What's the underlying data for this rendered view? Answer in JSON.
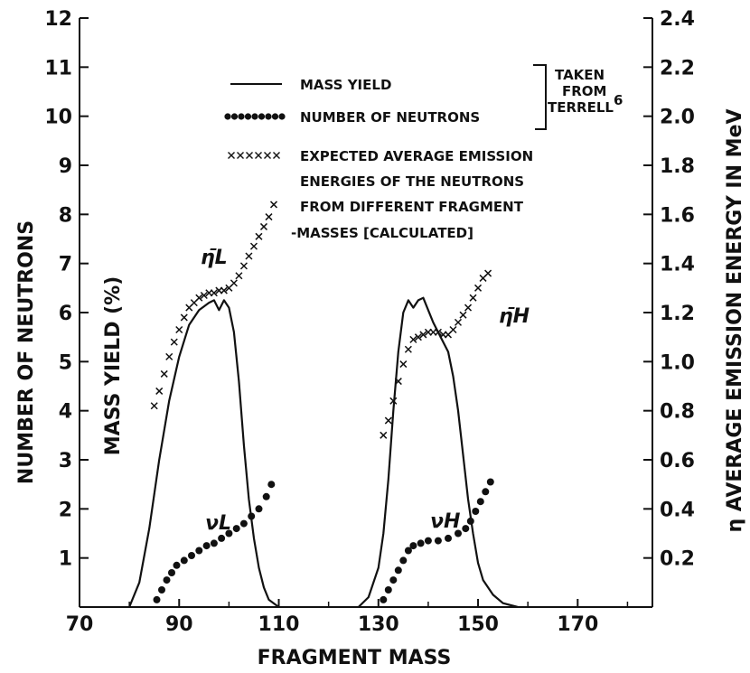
{
  "chart_data": {
    "type": "line",
    "title": "",
    "xlabel": "FRAGMENT MASS",
    "ylabel_outer": "NUMBER OF NEUTRONS",
    "ylabel_inner": "MASS YIELD (%)",
    "ylabel_right": "η AVERAGE EMISSION ENERGY IN MeV",
    "xlim": [
      70,
      185
    ],
    "ylim": [
      0,
      12
    ],
    "ylim_right": [
      0,
      2.4
    ],
    "x_ticks": [
      "70",
      "90",
      "110",
      "130",
      "150",
      "170"
    ],
    "x_tick_values": [
      70,
      90,
      110,
      130,
      150,
      170
    ],
    "y_ticks": [
      "1",
      "2",
      "3",
      "4",
      "5",
      "6",
      "7",
      "8",
      "9",
      "10",
      "11",
      "12"
    ],
    "y_tick_values": [
      1,
      2,
      3,
      4,
      5,
      6,
      7,
      8,
      9,
      10,
      11,
      12
    ],
    "y2_ticks": [
      "0.2",
      "0.4",
      "0.6",
      "0.8",
      "1.0",
      "1.2",
      "1.4",
      "1.6",
      "1.8",
      "2.0",
      "2.2",
      "2.4"
    ],
    "y2_tick_values": [
      0.2,
      0.4,
      0.6,
      0.8,
      1.0,
      1.2,
      1.4,
      1.6,
      1.8,
      2.0,
      2.2,
      2.4
    ],
    "grid": false,
    "legend_position": "top-center",
    "legend": {
      "mass_yield": "MASS YIELD",
      "neutrons": "NUMBER OF NEUTRONS",
      "bracket_label": [
        "TAKEN",
        "FROM",
        "TERRELL"
      ],
      "bracket_ref": "6",
      "energies": [
        "EXPECTED AVERAGE EMISSION",
        "ENERGIES OF THE NEUTRONS",
        "FROM DIFFERENT FRAGMENT",
        "-MASSES [CALCULATED]"
      ]
    },
    "curve_labels": {
      "eta_l": "η̄L",
      "eta_h": "η̄H",
      "nu_l": "νL",
      "nu_h": "νH"
    },
    "series": [
      {
        "name": "MASS YIELD",
        "style": "solid",
        "axis": "left",
        "segments": [
          [
            [
              80,
              0
            ],
            [
              82,
              0.5
            ],
            [
              84,
              1.6
            ],
            [
              86,
              3.0
            ],
            [
              88,
              4.2
            ],
            [
              90,
              5.1
            ],
            [
              92,
              5.75
            ],
            [
              94,
              6.05
            ],
            [
              96,
              6.2
            ],
            [
              97,
              6.25
            ],
            [
              98,
              6.05
            ],
            [
              99,
              6.25
            ],
            [
              100,
              6.1
            ],
            [
              101,
              5.6
            ],
            [
              102,
              4.6
            ],
            [
              103,
              3.3
            ],
            [
              104,
              2.2
            ],
            [
              105,
              1.4
            ],
            [
              106,
              0.8
            ],
            [
              107,
              0.4
            ],
            [
              108,
              0.15
            ],
            [
              110,
              0
            ]
          ],
          [
            [
              126,
              0
            ],
            [
              128,
              0.2
            ],
            [
              130,
              0.8
            ],
            [
              131,
              1.5
            ],
            [
              132,
              2.6
            ],
            [
              133,
              4.0
            ],
            [
              134,
              5.2
            ],
            [
              135,
              6.0
            ],
            [
              136,
              6.25
            ],
            [
              137,
              6.1
            ],
            [
              138,
              6.25
            ],
            [
              139,
              6.3
            ],
            [
              140,
              6.05
            ],
            [
              141,
              5.8
            ],
            [
              142,
              5.6
            ],
            [
              144,
              5.2
            ],
            [
              145,
              4.7
            ],
            [
              146,
              4.0
            ],
            [
              147,
              3.1
            ],
            [
              148,
              2.2
            ],
            [
              149,
              1.5
            ],
            [
              150,
              0.9
            ],
            [
              151,
              0.55
            ],
            [
              153,
              0.25
            ],
            [
              155,
              0.08
            ],
            [
              158,
              0
            ]
          ]
        ]
      },
      {
        "name": "NUMBER OF NEUTRONS",
        "style": "dots",
        "axis": "left",
        "segments": [
          [
            [
              85.5,
              0.15
            ],
            [
              86.5,
              0.35
            ],
            [
              87.5,
              0.55
            ],
            [
              88.5,
              0.7
            ],
            [
              89.5,
              0.85
            ],
            [
              91,
              0.95
            ],
            [
              92.5,
              1.05
            ],
            [
              94,
              1.15
            ],
            [
              95.5,
              1.25
            ],
            [
              97,
              1.3
            ],
            [
              98.5,
              1.4
            ],
            [
              100,
              1.5
            ],
            [
              101.5,
              1.6
            ],
            [
              103,
              1.7
            ],
            [
              104.5,
              1.85
            ],
            [
              106,
              2.0
            ],
            [
              107.5,
              2.25
            ],
            [
              108.5,
              2.5
            ]
          ],
          [
            [
              131,
              0.15
            ],
            [
              132,
              0.35
            ],
            [
              133,
              0.55
            ],
            [
              134,
              0.75
            ],
            [
              135,
              0.95
            ],
            [
              136,
              1.15
            ],
            [
              137,
              1.25
            ],
            [
              138.5,
              1.3
            ],
            [
              140,
              1.35
            ],
            [
              142,
              1.35
            ],
            [
              144,
              1.4
            ],
            [
              146,
              1.5
            ],
            [
              147.5,
              1.6
            ],
            [
              148.5,
              1.75
            ],
            [
              149.5,
              1.95
            ],
            [
              150.5,
              2.15
            ],
            [
              151.5,
              2.35
            ],
            [
              152.5,
              2.55
            ]
          ]
        ]
      },
      {
        "name": "EXPECTED AVERAGE EMISSION ENERGIES OF THE NEUTRONS FROM DIFFERENT FRAGMENT MASSES [CALCULATED]",
        "style": "crosses",
        "axis": "right",
        "segments": [
          [
            [
              85,
              0.82
            ],
            [
              86,
              0.88
            ],
            [
              87,
              0.95
            ],
            [
              88,
              1.02
            ],
            [
              89,
              1.08
            ],
            [
              90,
              1.13
            ],
            [
              91,
              1.18
            ],
            [
              92,
              1.22
            ],
            [
              93,
              1.24
            ],
            [
              94,
              1.26
            ],
            [
              95,
              1.27
            ],
            [
              96,
              1.28
            ],
            [
              97,
              1.28
            ],
            [
              98,
              1.29
            ],
            [
              99,
              1.29
            ],
            [
              100,
              1.3
            ],
            [
              101,
              1.32
            ],
            [
              102,
              1.35
            ],
            [
              103,
              1.39
            ],
            [
              104,
              1.43
            ],
            [
              105,
              1.47
            ],
            [
              106,
              1.51
            ],
            [
              107,
              1.55
            ],
            [
              108,
              1.59
            ],
            [
              109,
              1.64
            ]
          ],
          [
            [
              131,
              0.7
            ],
            [
              132,
              0.76
            ],
            [
              133,
              0.84
            ],
            [
              134,
              0.92
            ],
            [
              135,
              0.99
            ],
            [
              136,
              1.05
            ],
            [
              137,
              1.09
            ],
            [
              138,
              1.1
            ],
            [
              139,
              1.11
            ],
            [
              140,
              1.12
            ],
            [
              141,
              1.12
            ],
            [
              142,
              1.12
            ],
            [
              143,
              1.11
            ],
            [
              144,
              1.11
            ],
            [
              145,
              1.13
            ],
            [
              146,
              1.16
            ],
            [
              147,
              1.19
            ],
            [
              148,
              1.22
            ],
            [
              149,
              1.26
            ],
            [
              150,
              1.3
            ],
            [
              151,
              1.34
            ],
            [
              152,
              1.36
            ]
          ]
        ]
      }
    ]
  }
}
